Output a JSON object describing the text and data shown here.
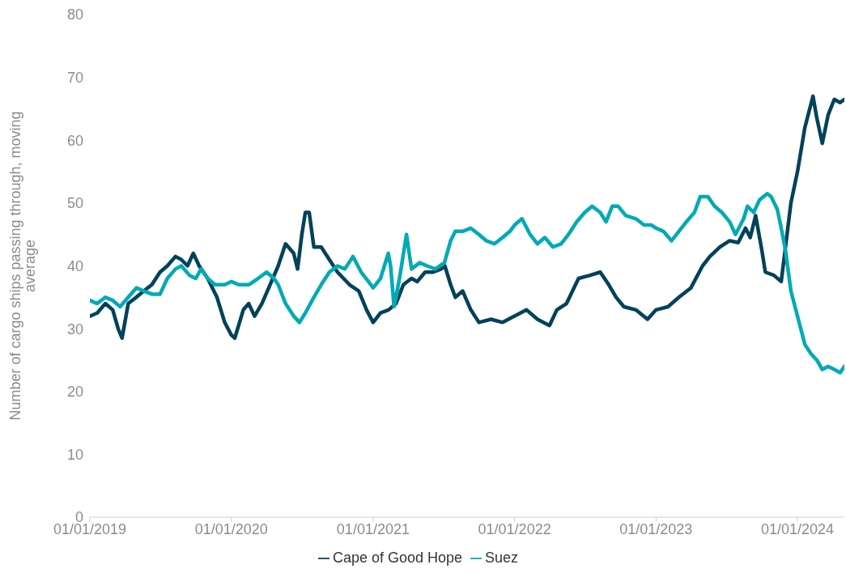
{
  "chart_data": {
    "type": "line",
    "ylabel": "Number of cargo ships passing through, moving average",
    "xlim": [
      "2019-01-01",
      "2024-05-01"
    ],
    "xticks": [
      {
        "value": "2019-01-01",
        "label": "01/01/2019"
      },
      {
        "value": "2020-01-01",
        "label": "01/01/2020"
      },
      {
        "value": "2021-01-01",
        "label": "01/01/2021"
      },
      {
        "value": "2022-01-01",
        "label": "01/01/2022"
      },
      {
        "value": "2023-01-01",
        "label": "01/01/2023"
      },
      {
        "value": "2024-01-01",
        "label": "01/01/2024"
      }
    ],
    "ylim": [
      0,
      80
    ],
    "yticks": [
      0,
      10,
      20,
      30,
      40,
      50,
      60,
      70,
      80
    ],
    "grid": false,
    "legend": "bottom",
    "marker": "none",
    "line_style": "solid",
    "series": [
      {
        "name": "Cape of Good Hope",
        "color": "#00425a",
        "x": [
          "2019-01-01",
          "2019-01-20",
          "2019-02-10",
          "2019-03-01",
          "2019-03-15",
          "2019-03-25",
          "2019-04-10",
          "2019-05-01",
          "2019-05-20",
          "2019-06-10",
          "2019-07-01",
          "2019-07-20",
          "2019-08-10",
          "2019-08-25",
          "2019-09-10",
          "2019-09-25",
          "2019-10-10",
          "2019-11-01",
          "2019-11-25",
          "2019-12-15",
          "2020-01-01",
          "2020-01-10",
          "2020-02-01",
          "2020-02-15",
          "2020-03-01",
          "2020-03-20",
          "2020-04-10",
          "2020-05-01",
          "2020-05-20",
          "2020-06-10",
          "2020-06-20",
          "2020-07-01",
          "2020-07-10",
          "2020-07-20",
          "2020-08-01",
          "2020-08-20",
          "2020-09-10",
          "2020-10-01",
          "2020-11-01",
          "2020-11-25",
          "2020-12-15",
          "2021-01-01",
          "2021-01-20",
          "2021-02-10",
          "2021-03-01",
          "2021-03-20",
          "2021-04-10",
          "2021-04-25",
          "2021-05-15",
          "2021-06-05",
          "2021-06-25",
          "2021-07-05",
          "2021-07-20",
          "2021-08-01",
          "2021-08-20",
          "2021-09-10",
          "2021-10-01",
          "2021-11-01",
          "2021-12-01",
          "2022-01-01",
          "2022-02-01",
          "2022-03-01",
          "2022-04-01",
          "2022-04-20",
          "2022-05-15",
          "2022-06-15",
          "2022-07-15",
          "2022-08-10",
          "2022-09-01",
          "2022-09-20",
          "2022-10-10",
          "2022-11-10",
          "2022-12-10",
          "2023-01-01",
          "2023-02-01",
          "2023-03-01",
          "2023-04-01",
          "2023-05-01",
          "2023-05-20",
          "2023-06-15",
          "2023-07-10",
          "2023-08-01",
          "2023-08-20",
          "2023-09-01",
          "2023-09-15",
          "2023-10-01",
          "2023-10-10",
          "2023-11-01",
          "2023-11-20",
          "2023-12-01",
          "2023-12-15",
          "2024-01-01",
          "2024-01-20",
          "2024-02-10",
          "2024-02-20",
          "2024-03-05",
          "2024-03-20",
          "2024-04-05",
          "2024-04-20",
          "2024-05-01"
        ],
        "values": [
          32,
          32.5,
          34,
          33,
          30,
          28.5,
          34,
          35,
          36,
          37,
          39,
          40,
          41.5,
          41,
          40,
          42,
          40,
          38,
          35,
          31,
          29,
          28.5,
          33,
          34,
          32,
          34,
          37,
          40,
          43.5,
          42,
          39.5,
          45,
          48.5,
          48.5,
          43,
          43,
          41,
          39,
          37,
          36,
          33,
          31,
          32.5,
          33,
          34,
          37,
          38,
          37.5,
          39,
          39,
          39.5,
          40,
          37,
          35,
          36,
          33,
          31,
          31.5,
          31,
          32,
          33,
          31.5,
          30.5,
          33,
          34,
          38,
          38.5,
          39,
          37,
          35,
          33.5,
          33,
          31.5,
          33,
          33.5,
          35,
          36.5,
          40,
          41.5,
          43,
          44,
          43.7,
          46,
          44.5,
          48,
          42.5,
          39,
          38.5,
          37.5,
          43,
          50,
          55,
          62,
          67,
          63.5,
          59.5,
          64,
          66.5,
          66,
          66.5
        ]
      },
      {
        "name": "Suez",
        "color": "#00aab5",
        "x": [
          "2019-01-01",
          "2019-01-20",
          "2019-02-10",
          "2019-03-01",
          "2019-03-20",
          "2019-04-10",
          "2019-05-01",
          "2019-05-20",
          "2019-06-10",
          "2019-07-01",
          "2019-07-20",
          "2019-08-10",
          "2019-08-25",
          "2019-09-15",
          "2019-10-01",
          "2019-10-15",
          "2019-11-01",
          "2019-11-20",
          "2019-12-15",
          "2020-01-01",
          "2020-01-20",
          "2020-02-15",
          "2020-03-10",
          "2020-04-01",
          "2020-04-20",
          "2020-05-01",
          "2020-05-20",
          "2020-06-10",
          "2020-06-25",
          "2020-07-10",
          "2020-08-01",
          "2020-08-20",
          "2020-09-10",
          "2020-10-01",
          "2020-10-20",
          "2020-11-10",
          "2020-12-01",
          "2020-12-20",
          "2021-01-01",
          "2021-01-20",
          "2021-02-09",
          "2021-02-15",
          "2021-02-24",
          "2021-03-10",
          "2021-03-28",
          "2021-04-10",
          "2021-05-01",
          "2021-05-20",
          "2021-06-10",
          "2021-07-04",
          "2021-07-20",
          "2021-08-01",
          "2021-08-20",
          "2021-09-10",
          "2021-10-01",
          "2021-10-20",
          "2021-11-10",
          "2021-12-01",
          "2021-12-20",
          "2022-01-01",
          "2022-01-20",
          "2022-02-10",
          "2022-03-01",
          "2022-03-20",
          "2022-04-10",
          "2022-05-01",
          "2022-05-20",
          "2022-06-10",
          "2022-07-01",
          "2022-07-20",
          "2022-08-10",
          "2022-08-25",
          "2022-09-10",
          "2022-09-25",
          "2022-10-15",
          "2022-11-10",
          "2022-12-01",
          "2022-12-20",
          "2023-01-01",
          "2023-01-20",
          "2023-02-10",
          "2023-03-01",
          "2023-03-20",
          "2023-04-10",
          "2023-04-25",
          "2023-05-15",
          "2023-06-01",
          "2023-06-20",
          "2023-07-10",
          "2023-07-25",
          "2023-08-15",
          "2023-08-25",
          "2023-09-10",
          "2023-09-25",
          "2023-10-15",
          "2023-10-25",
          "2023-11-10",
          "2023-11-20",
          "2023-12-01",
          "2023-12-15",
          "2024-01-01",
          "2024-01-20",
          "2024-02-05",
          "2024-02-20",
          "2024-03-05",
          "2024-03-20",
          "2024-04-05",
          "2024-04-20",
          "2024-05-01"
        ],
        "values": [
          34.5,
          34,
          35,
          34.5,
          33.5,
          35,
          36.5,
          36,
          35.5,
          35.5,
          38,
          39.5,
          40,
          38.5,
          38,
          39.5,
          38,
          37,
          37,
          37.5,
          37,
          37,
          38,
          39,
          38,
          37,
          34,
          32,
          31,
          32.5,
          35,
          37,
          39,
          40,
          39.5,
          41.5,
          39,
          37.5,
          36.5,
          38,
          42,
          40,
          33.5,
          38,
          45,
          39.5,
          40.5,
          40,
          39.5,
          40.5,
          44,
          45.5,
          45.5,
          46,
          45,
          44,
          43.5,
          44.5,
          45.5,
          46.5,
          47.5,
          45,
          43.5,
          44.5,
          43,
          43.5,
          45,
          47,
          48.5,
          49.5,
          48.5,
          47,
          49.5,
          49.5,
          48,
          47.5,
          46.5,
          46.5,
          46,
          45.5,
          44,
          45.5,
          47,
          48.5,
          51,
          51,
          49.5,
          48.5,
          47,
          45,
          47.5,
          49.5,
          48.5,
          50.5,
          51.5,
          51,
          49,
          46,
          42.5,
          36,
          32,
          27.5,
          26,
          25,
          23.5,
          24,
          23.5,
          23,
          24
        ]
      }
    ]
  }
}
